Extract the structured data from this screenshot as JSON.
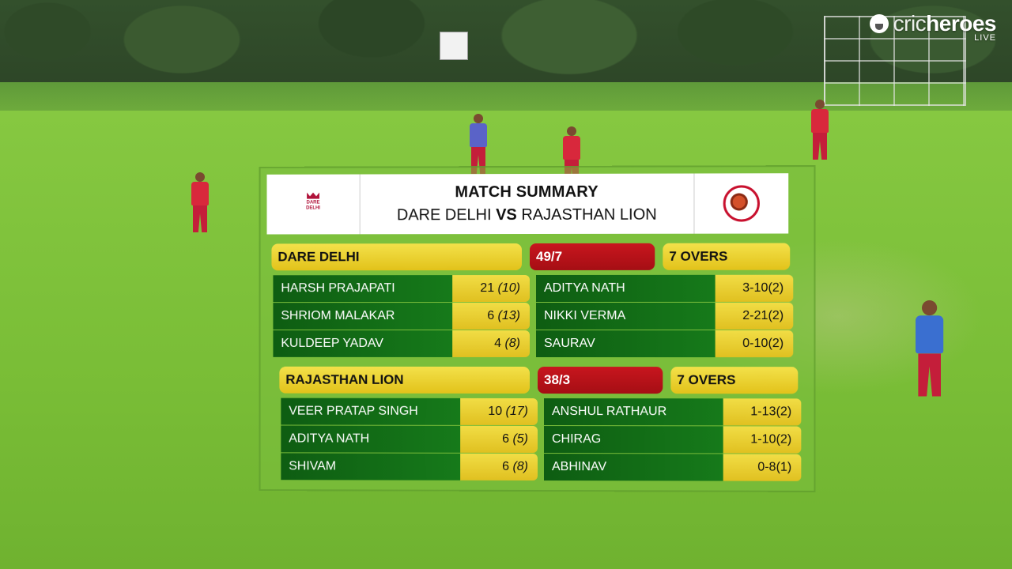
{
  "brand": {
    "name_light": "cric",
    "name_bold": "heroes",
    "live": "LIVE",
    "icon": "cricheroes-ball-icon"
  },
  "header": {
    "title": "MATCH SUMMARY",
    "team_a": "DARE DELHI",
    "vs": "VS",
    "team_b": "RAJASTHAN LION",
    "team_a_logo_text": "DARE DELHI",
    "team_a_logo": "dare-delhi-crown-icon",
    "team_b_logo": "rajasthan-lion-icon"
  },
  "innings": [
    {
      "team": "DARE DELHI",
      "score": "49/7",
      "overs": "7 OVERS",
      "batters": [
        {
          "name": "HARSH PRAJAPATI",
          "runs": "21",
          "balls": "(10)"
        },
        {
          "name": "SHRIOM MALAKAR",
          "runs": "6",
          "balls": "(13)"
        },
        {
          "name": "KULDEEP YADAV",
          "runs": "4",
          "balls": "(8)"
        }
      ],
      "bowlers": [
        {
          "name": "ADITYA NATH",
          "figures": "3-10",
          "overs": "(2)"
        },
        {
          "name": "NIKKI VERMA",
          "figures": "2-21",
          "overs": "(2)"
        },
        {
          "name": "SAURAV",
          "figures": "0-10",
          "overs": "(2)"
        }
      ]
    },
    {
      "team": "RAJASTHAN LION",
      "score": "38/3",
      "overs": "7 OVERS",
      "batters": [
        {
          "name": "VEER PRATAP SINGH",
          "runs": "10",
          "balls": "(17)"
        },
        {
          "name": "ADITYA NATH",
          "runs": "6",
          "balls": "(5)"
        },
        {
          "name": "SHIVAM",
          "runs": "6",
          "balls": "(8)"
        }
      ],
      "bowlers": [
        {
          "name": "ANSHUL RATHAUR",
          "figures": "1-13",
          "overs": "(2)"
        },
        {
          "name": "CHIRAG",
          "figures": "1-10",
          "overs": "(2)"
        },
        {
          "name": "ABHINAV",
          "figures": "0-8",
          "overs": "(1)"
        }
      ]
    }
  ],
  "colors": {
    "green": "#167a1a",
    "yellow": "#e8cc2a",
    "red": "#b8121a"
  }
}
